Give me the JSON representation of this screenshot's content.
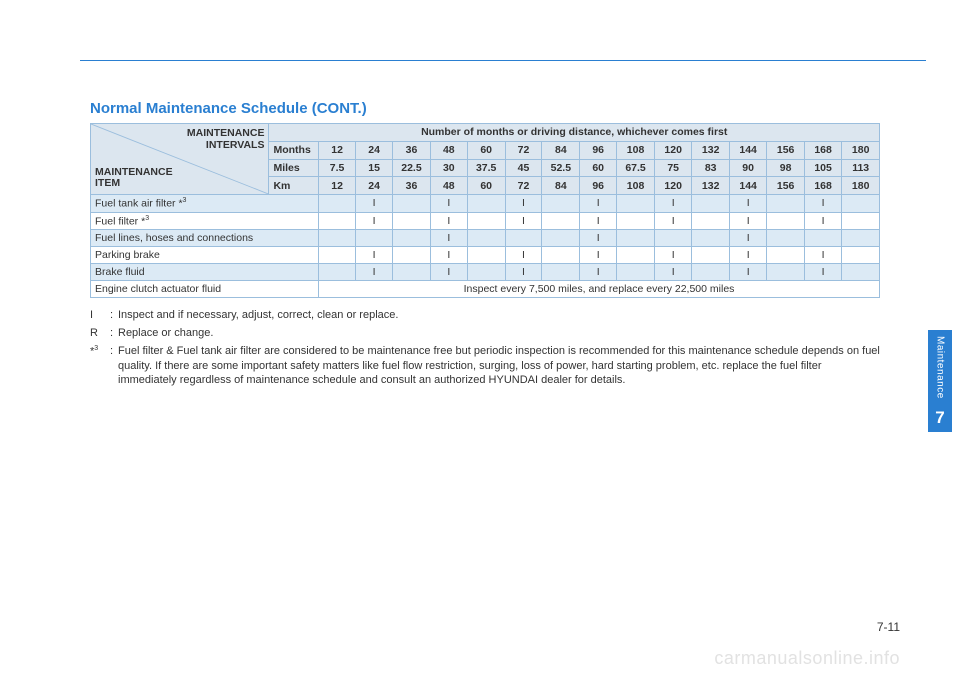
{
  "title": "Normal Maintenance Schedule (CONT.)",
  "corner": {
    "intervals_l1": "MAINTENANCE",
    "intervals_l2": "INTERVALS",
    "item_l1": "MAINTENANCE",
    "item_l2": "ITEM"
  },
  "spanHeader": "Number of months or driving distance, whichever comes first",
  "unitRows": [
    {
      "label": "Months",
      "vals": [
        "12",
        "24",
        "36",
        "48",
        "60",
        "72",
        "84",
        "96",
        "108",
        "120",
        "132",
        "144",
        "156",
        "168",
        "180"
      ]
    },
    {
      "label": "Miles",
      "vals": [
        "7.5",
        "15",
        "22.5",
        "30",
        "37.5",
        "45",
        "52.5",
        "60",
        "67.5",
        "75",
        "83",
        "90",
        "98",
        "105",
        "113"
      ]
    },
    {
      "label": "Km",
      "vals": [
        "12",
        "24",
        "36",
        "48",
        "60",
        "72",
        "84",
        "96",
        "108",
        "120",
        "132",
        "144",
        "156",
        "168",
        "180"
      ]
    }
  ],
  "items": [
    {
      "name": "Fuel tank air filter *",
      "sup": "3",
      "vals": [
        "",
        "I",
        "",
        "I",
        "",
        "I",
        "",
        "I",
        "",
        "I",
        "",
        "I",
        "",
        "I",
        ""
      ],
      "blue": true
    },
    {
      "name": "Fuel filter *",
      "sup": "3",
      "vals": [
        "",
        "I",
        "",
        "I",
        "",
        "I",
        "",
        "I",
        "",
        "I",
        "",
        "I",
        "",
        "I",
        ""
      ],
      "blue": false
    },
    {
      "name": "Fuel lines, hoses and connections",
      "vals": [
        "",
        "",
        "",
        "I",
        "",
        "",
        "",
        "I",
        "",
        "",
        "",
        "I",
        "",
        "",
        ""
      ],
      "blue": true
    },
    {
      "name": "Parking brake",
      "vals": [
        "",
        "I",
        "",
        "I",
        "",
        "I",
        "",
        "I",
        "",
        "I",
        "",
        "I",
        "",
        "I",
        ""
      ],
      "blue": false
    },
    {
      "name": "Brake fluid",
      "vals": [
        "",
        "I",
        "",
        "I",
        "",
        "I",
        "",
        "I",
        "",
        "I",
        "",
        "I",
        "",
        "I",
        ""
      ],
      "blue": true
    }
  ],
  "fullRow": {
    "name": "Engine clutch actuator fluid",
    "note": "Inspect every 7,500 miles, and replace every 22,500 miles"
  },
  "legend": {
    "i_key": "I",
    "i_text": "Inspect and if necessary, adjust, correct, clean or replace.",
    "r_key": "R",
    "r_text": "Replace or change.",
    "star_key": "*",
    "star_sup": "3",
    "star_text": "Fuel filter & Fuel tank air filter are considered to be maintenance free but periodic inspection is recommended for this maintenance schedule depends on fuel quality. If there are some important safety matters like fuel flow restriction, surging, loss of power, hard starting problem, etc. replace the fuel filter immediately regardless of maintenance schedule and consult an authorized HYUNDAI dealer for details."
  },
  "sideTab": {
    "label": "Maintenance",
    "num": "7"
  },
  "pageNum": "7-11",
  "watermark": "carmanualsonline.info",
  "colors": {
    "accent": "#2a7fd1",
    "headerBg": "#dce6ef",
    "rowBlue": "#dceaf5",
    "border": "#9bbedd"
  }
}
